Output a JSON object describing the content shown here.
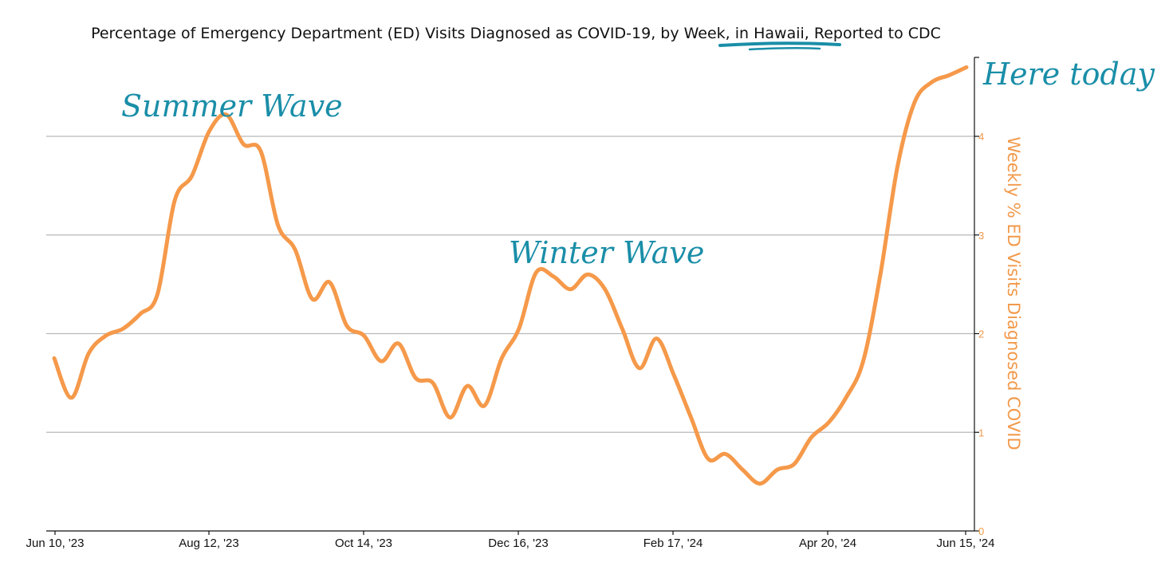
{
  "chart_data": {
    "type": "line",
    "title": "Percentage of Emergency Department (ED) Visits Diagnosed as COVID-19, by Week, in Hawaii, Reported to CDC",
    "ylabel": "Weekly % ED Visits Diagnosed COVID",
    "xlabel": "",
    "ylim": [
      0,
      4.8
    ],
    "yticks": [
      "0",
      "1",
      "2",
      "3",
      "4"
    ],
    "xticks": [
      "Jun 10, '23",
      "Aug 12, '23",
      "Oct 14, '23",
      "Dec 16, '23",
      "Feb 17, '24",
      "Apr 20, '24",
      "Jun 15, '24"
    ],
    "grid": "horizontal",
    "y_axis_side": "right",
    "series": [
      {
        "color": "#f5994a",
        "x": [
          "2023-06-10",
          "2023-06-17",
          "2023-06-24",
          "2023-07-01",
          "2023-07-08",
          "2023-07-15",
          "2023-07-22",
          "2023-07-29",
          "2023-08-05",
          "2023-08-12",
          "2023-08-19",
          "2023-08-26",
          "2023-09-02",
          "2023-09-09",
          "2023-09-16",
          "2023-09-23",
          "2023-09-30",
          "2023-10-07",
          "2023-10-14",
          "2023-10-21",
          "2023-10-28",
          "2023-11-04",
          "2023-11-11",
          "2023-11-18",
          "2023-11-25",
          "2023-12-02",
          "2023-12-09",
          "2023-12-16",
          "2023-12-23",
          "2023-12-30",
          "2024-01-06",
          "2024-01-13",
          "2024-01-20",
          "2024-01-27",
          "2024-02-03",
          "2024-02-10",
          "2024-02-17",
          "2024-02-24",
          "2024-03-02",
          "2024-03-09",
          "2024-03-16",
          "2024-03-23",
          "2024-03-30",
          "2024-04-06",
          "2024-04-13",
          "2024-04-20",
          "2024-04-27",
          "2024-05-04",
          "2024-05-11",
          "2024-05-18",
          "2024-05-25",
          "2024-06-01",
          "2024-06-08",
          "2024-06-15"
        ],
        "values": [
          1.75,
          1.35,
          1.8,
          1.98,
          2.05,
          2.2,
          2.4,
          3.35,
          3.6,
          4.05,
          4.22,
          3.92,
          3.85,
          3.1,
          2.85,
          2.35,
          2.52,
          2.08,
          1.98,
          1.72,
          1.9,
          1.55,
          1.5,
          1.15,
          1.47,
          1.27,
          1.75,
          2.05,
          2.62,
          2.58,
          2.45,
          2.6,
          2.45,
          2.05,
          1.65,
          1.95,
          1.58,
          1.15,
          0.73,
          0.78,
          0.62,
          0.48,
          0.62,
          0.68,
          0.95,
          1.1,
          1.35,
          1.72,
          2.6,
          3.7,
          4.35,
          4.55,
          4.62,
          4.7
        ]
      }
    ],
    "annotations": [
      "Summer Wave",
      "Winter Wave",
      "Here today"
    ]
  }
}
